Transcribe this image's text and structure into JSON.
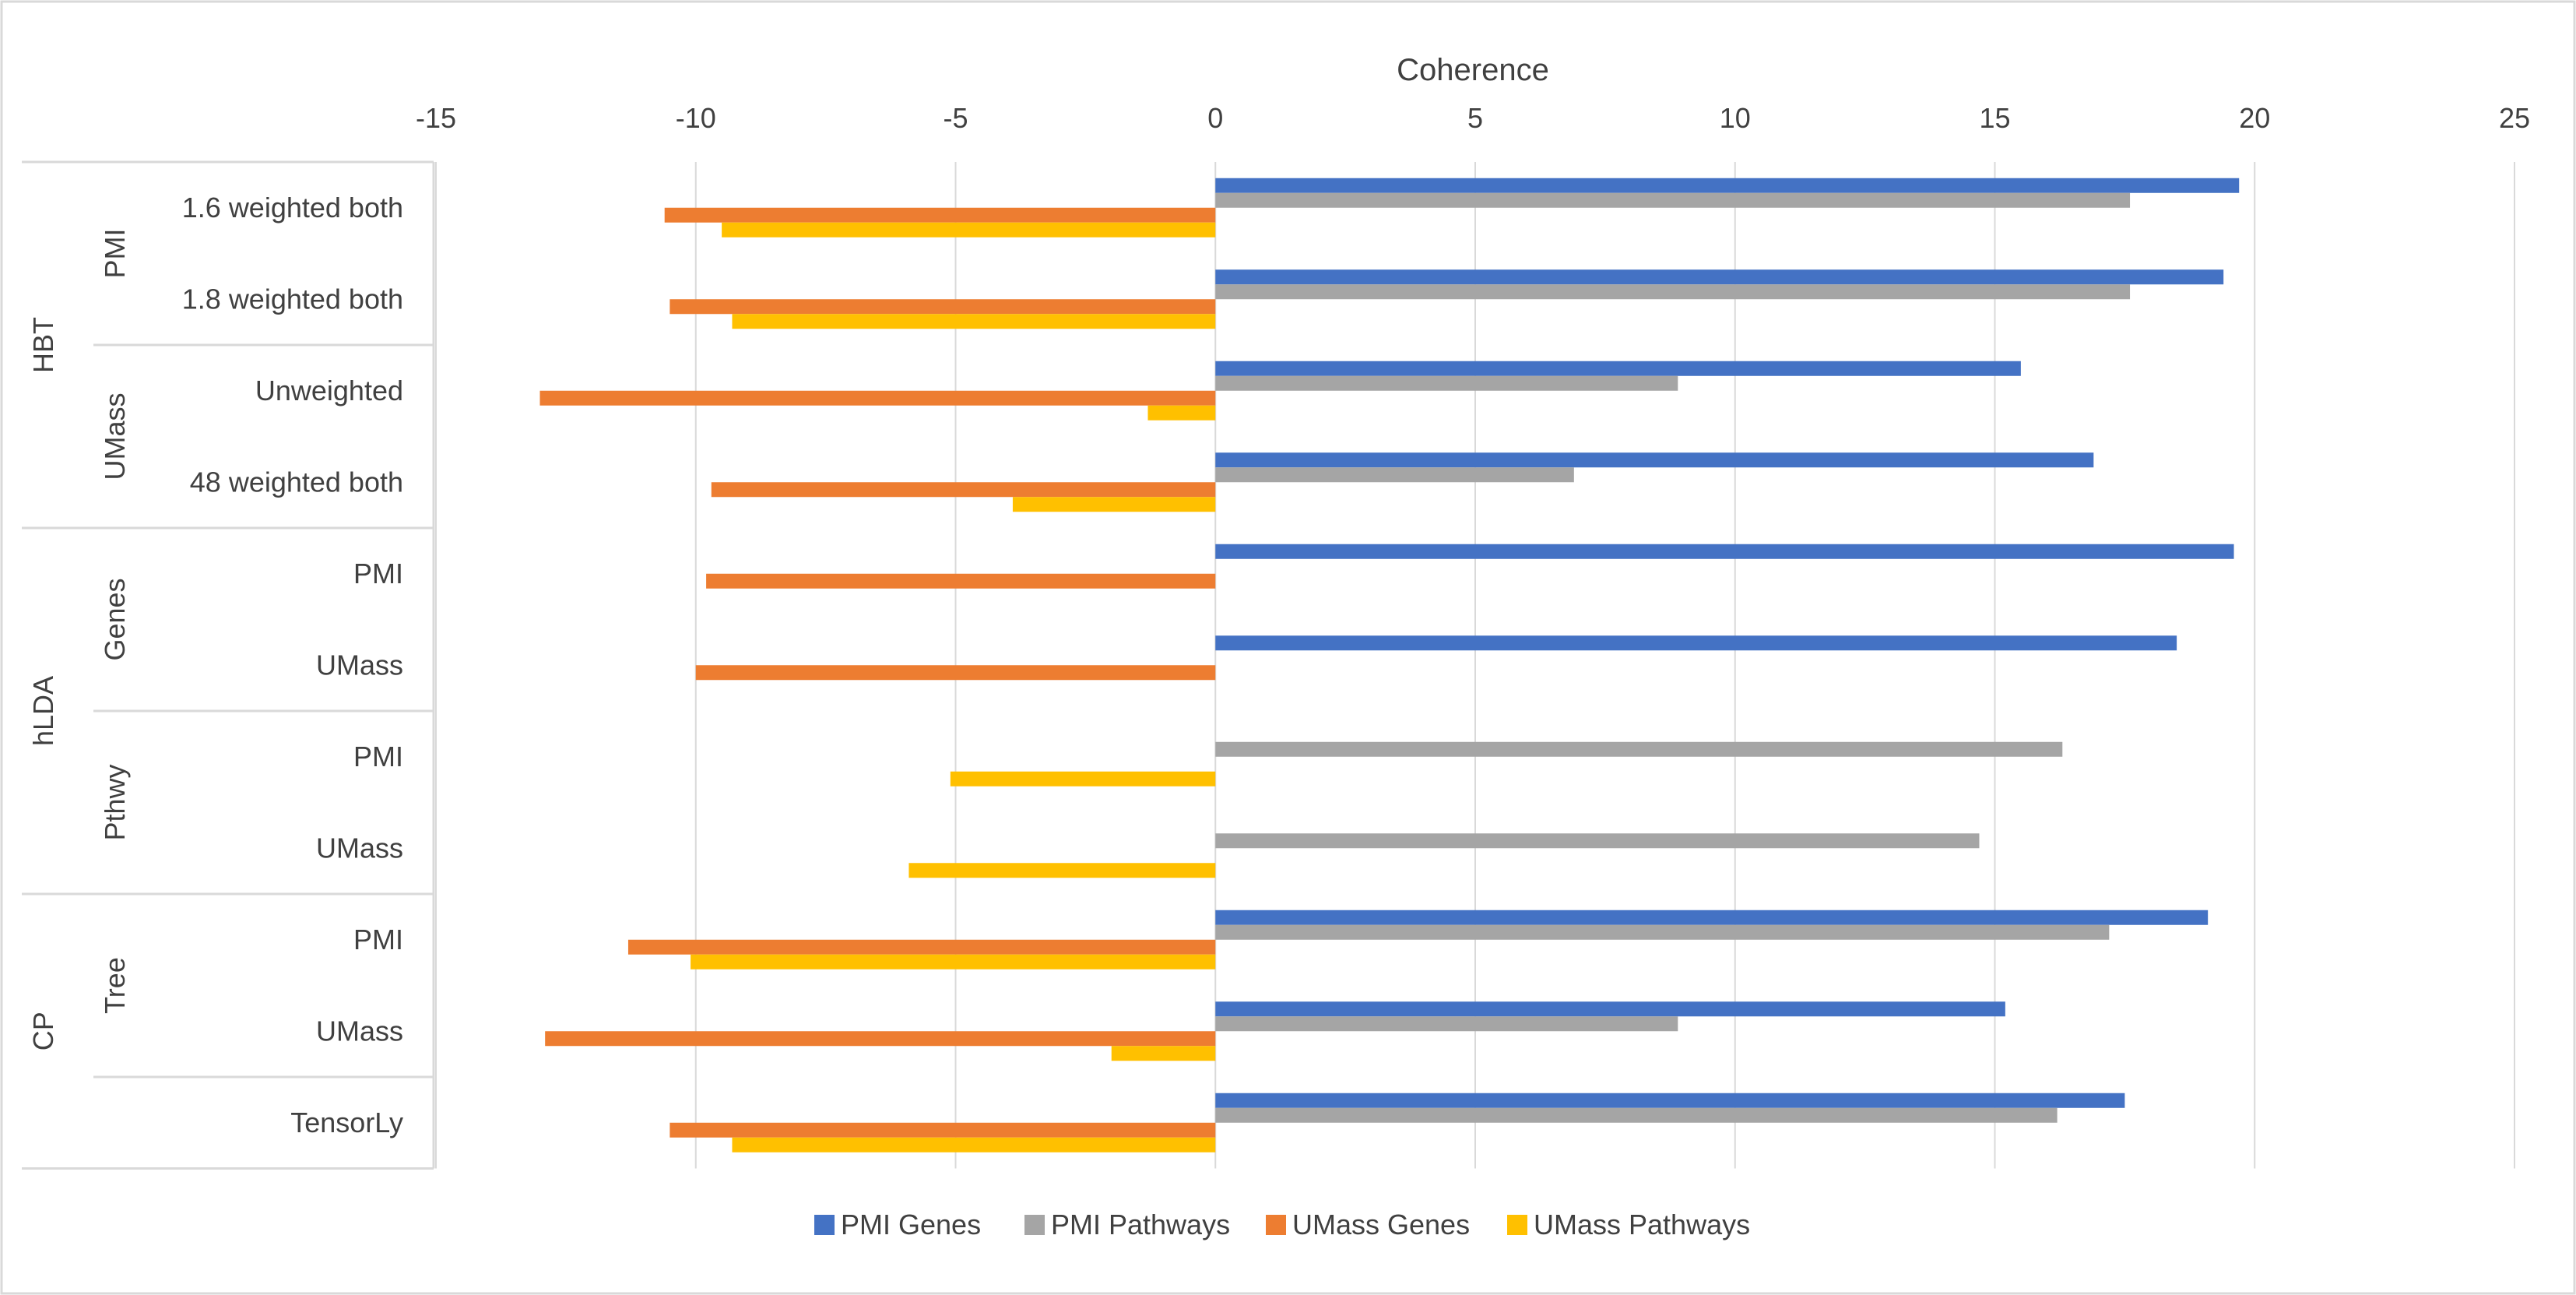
{
  "chart_data": {
    "type": "bar",
    "orientation": "horizontal",
    "title": "",
    "xlabel": "Coherence",
    "ylabel": "",
    "xlim": [
      -15,
      25
    ],
    "xticks": [
      -15,
      -10,
      -5,
      0,
      5,
      10,
      15,
      20,
      25
    ],
    "grid": true,
    "legend_position": "bottom",
    "categories": [
      "1.6 weighted both",
      "1.8 weighted both",
      "Unweighted",
      "48 weighted both",
      "PMI",
      "UMass",
      "PMI",
      "UMass",
      "PMI",
      "UMass",
      "TensorLy"
    ],
    "groups_level2": [
      {
        "label": "PMI",
        "start": 0,
        "end": 1
      },
      {
        "label": "UMass",
        "start": 2,
        "end": 3
      },
      {
        "label": "Genes",
        "start": 4,
        "end": 5
      },
      {
        "label": "Pthwy",
        "start": 6,
        "end": 7
      },
      {
        "label": "Tree",
        "start": 8,
        "end": 9
      }
    ],
    "groups_level1": [
      {
        "label": "HBT",
        "start": 0,
        "end": 3
      },
      {
        "label": "hLDA",
        "start": 4,
        "end": 7
      },
      {
        "label": "CP",
        "start": 8,
        "end": 10
      }
    ],
    "series": [
      {
        "name": "PMI Genes",
        "color": "#4472c4",
        "values": [
          19.7,
          19.4,
          15.5,
          16.9,
          19.6,
          18.5,
          null,
          null,
          19.1,
          15.2,
          17.5
        ]
      },
      {
        "name": "PMI Pathways",
        "color": "#a5a5a5",
        "values": [
          17.6,
          17.6,
          8.9,
          6.9,
          null,
          null,
          16.3,
          14.7,
          17.2,
          8.9,
          16.2
        ]
      },
      {
        "name": "UMass Genes",
        "color": "#ed7d31",
        "values": [
          -10.6,
          -10.5,
          -13.0,
          -9.7,
          -9.8,
          -10.0,
          null,
          null,
          -11.3,
          -12.9,
          -10.5
        ]
      },
      {
        "name": "UMass Pathways",
        "color": "#ffc000",
        "values": [
          -9.5,
          -9.3,
          -1.3,
          -3.9,
          null,
          null,
          -5.1,
          -5.9,
          -10.1,
          -2.0,
          -9.3
        ]
      }
    ]
  }
}
